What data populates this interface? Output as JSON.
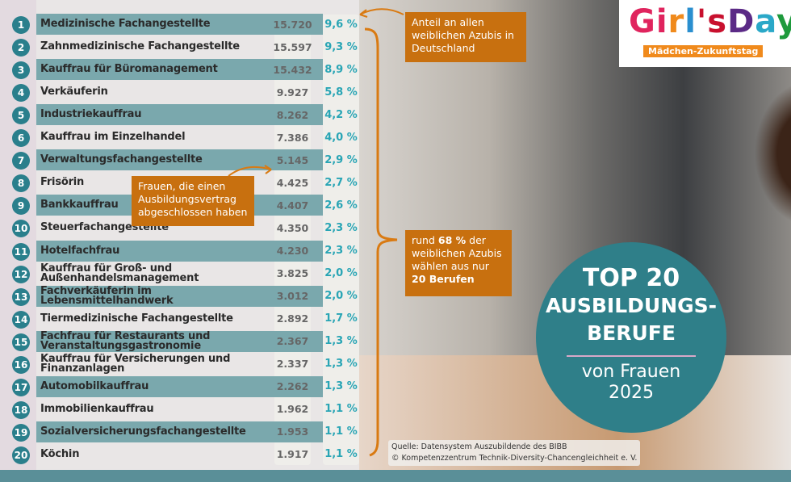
{
  "rows": [
    {
      "rank": "1",
      "name": "Medizinische Fachangestellte",
      "count": "15.720",
      "share": "9,6 %"
    },
    {
      "rank": "2",
      "name": "Zahnmedizinische Fachangestellte",
      "count": "15.597",
      "share": "9,3 %"
    },
    {
      "rank": "3",
      "name": "Kauffrau für Büromanagement",
      "count": "15.432",
      "share": "8,9 %"
    },
    {
      "rank": "4",
      "name": "Verkäuferin",
      "count": "9.927",
      "share": "5,8 %"
    },
    {
      "rank": "5",
      "name": "Industriekauffrau",
      "count": "8.262",
      "share": "4,2 %"
    },
    {
      "rank": "6",
      "name": "Kauffrau im Einzelhandel",
      "count": "7.386",
      "share": "4,0 %"
    },
    {
      "rank": "7",
      "name": "Verwaltungsfachangestellte",
      "count": "5.145",
      "share": "2,9 %"
    },
    {
      "rank": "8",
      "name": "Frisörin",
      "count": "4.425",
      "share": "2,7 %"
    },
    {
      "rank": "9",
      "name": "Bankkauffrau",
      "count": "4.407",
      "share": "2,6 %"
    },
    {
      "rank": "10",
      "name": "Steuerfachangestellte",
      "count": "4.350",
      "share": "2,3 %"
    },
    {
      "rank": "11",
      "name": "Hotelfachfrau",
      "count": "4.230",
      "share": "2,3 %"
    },
    {
      "rank": "12",
      "name": "Kauffrau für Groß- und Außenhandelsmanagement",
      "count": "3.825",
      "share": "2,0 %"
    },
    {
      "rank": "13",
      "name": "Fachverkäuferin im Lebensmittelhandwerk",
      "count": "3.012",
      "share": "2,0 %"
    },
    {
      "rank": "14",
      "name": "Tiermedizinische Fachangestellte",
      "count": "2.892",
      "share": "1,7 %"
    },
    {
      "rank": "15",
      "name": "Fachfrau für Restaurants und Veranstaltungsgastronomie",
      "count": "2.367",
      "share": "1,3 %"
    },
    {
      "rank": "16",
      "name": "Kauffrau für Versicherungen und Finanzanlagen",
      "count": "2.337",
      "share": "1,3 %"
    },
    {
      "rank": "17",
      "name": "Automobilkauffrau",
      "count": "2.262",
      "share": "1,3 %"
    },
    {
      "rank": "18",
      "name": "Immobilienkauffrau",
      "count": "1.962",
      "share": "1,1 %"
    },
    {
      "rank": "19",
      "name": "Sozialversicherungsfachangestellte",
      "count": "1.953",
      "share": "1,1 %"
    },
    {
      "rank": "20",
      "name": "Köchin",
      "count": "1.917",
      "share": "1,1 %"
    }
  ],
  "notes": {
    "share": "Anteil an allen weiblichen Azubis in Deutschland",
    "count": "Frauen, die einen Ausbildungsvertrag abgeschlossen haben",
    "total_pre": "rund ",
    "total_bold": "68 %",
    "total_mid": " der weiblichen Azubis wählen aus nur ",
    "total_bold2": "20 Berufen"
  },
  "headline": {
    "line1": "TOP 20",
    "line2": "AUSBILDUNGS-",
    "line3": "BERUFE",
    "line4": "von Frauen",
    "line5": "2025"
  },
  "logo": {
    "wordmark": "Girls'Day",
    "tagline": "Mädchen-Zukunftstag"
  },
  "source": {
    "line1": "Quelle: Datensystem Auszubildende des BIBB",
    "line2": "© Kompetenzzentrum Technik-Diversity-Chancengleichheit e. V."
  },
  "colors": {
    "teal": "#2a7f8c",
    "bar": "#7aa8ad",
    "orange": "#c8700f",
    "percent": "#29a5b5"
  }
}
